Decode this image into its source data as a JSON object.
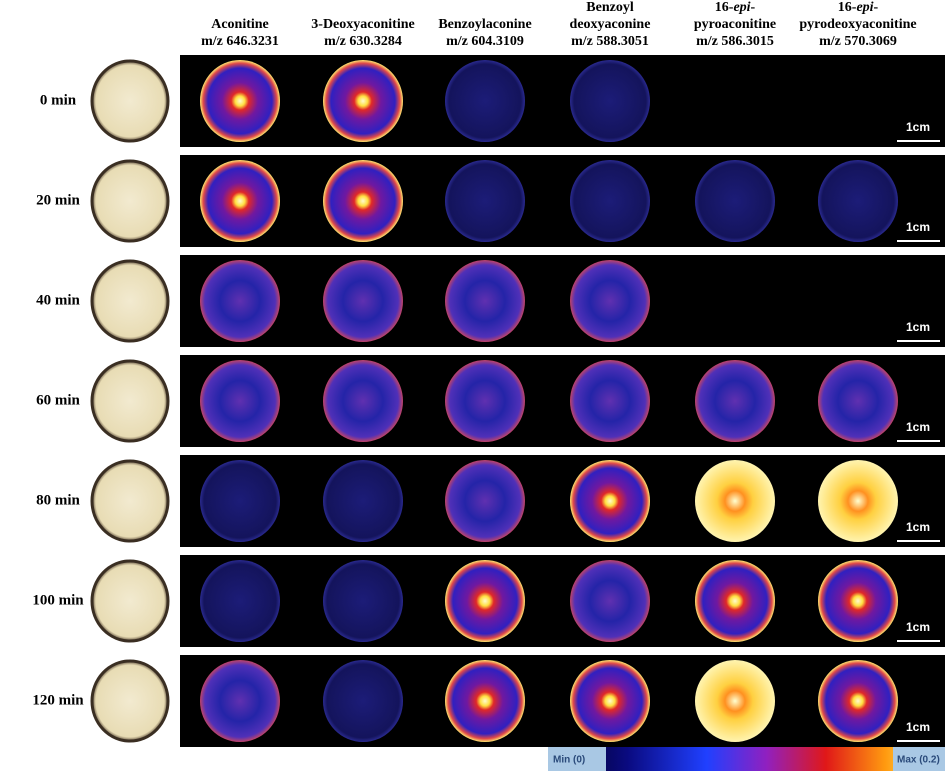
{
  "columns": [
    {
      "lines": [
        "Aconitine",
        "m/z 646.3231"
      ]
    },
    {
      "lines": [
        "3-Deoxyaconitine",
        "m/z 630.3284"
      ]
    },
    {
      "lines": [
        "Benzoylaconine",
        "m/z  604.3109"
      ]
    },
    {
      "lines": [
        "Benzoyl",
        "deoxyaconine",
        "m/z  588.3051"
      ]
    },
    {
      "lines": [
        [
          {
            "text": "16-"
          },
          {
            "text": "epi",
            "italic": true
          },
          {
            "text": "-"
          }
        ],
        "pyroaconitine",
        "m/z  586.3015"
      ]
    },
    {
      "lines": [
        [
          {
            "text": "16-"
          },
          {
            "text": "epi",
            "italic": true
          },
          {
            "text": "-"
          }
        ],
        "pyrodeoxyaconitine",
        "m/z  570.3069"
      ]
    }
  ],
  "rows": [
    {
      "label": "0 min",
      "scale": "1cm"
    },
    {
      "label": "20 min",
      "scale": "1cm"
    },
    {
      "label": "40 min",
      "scale": "1cm"
    },
    {
      "label": "60 min",
      "scale": "1cm"
    },
    {
      "label": "80 min",
      "scale": "1cm"
    },
    {
      "label": "100 min",
      "scale": "1cm"
    },
    {
      "label": "120 min",
      "scale": "1cm"
    }
  ],
  "colorbar": {
    "min_label": "Min (0)",
    "max_label": "Max (0.2)"
  }
}
